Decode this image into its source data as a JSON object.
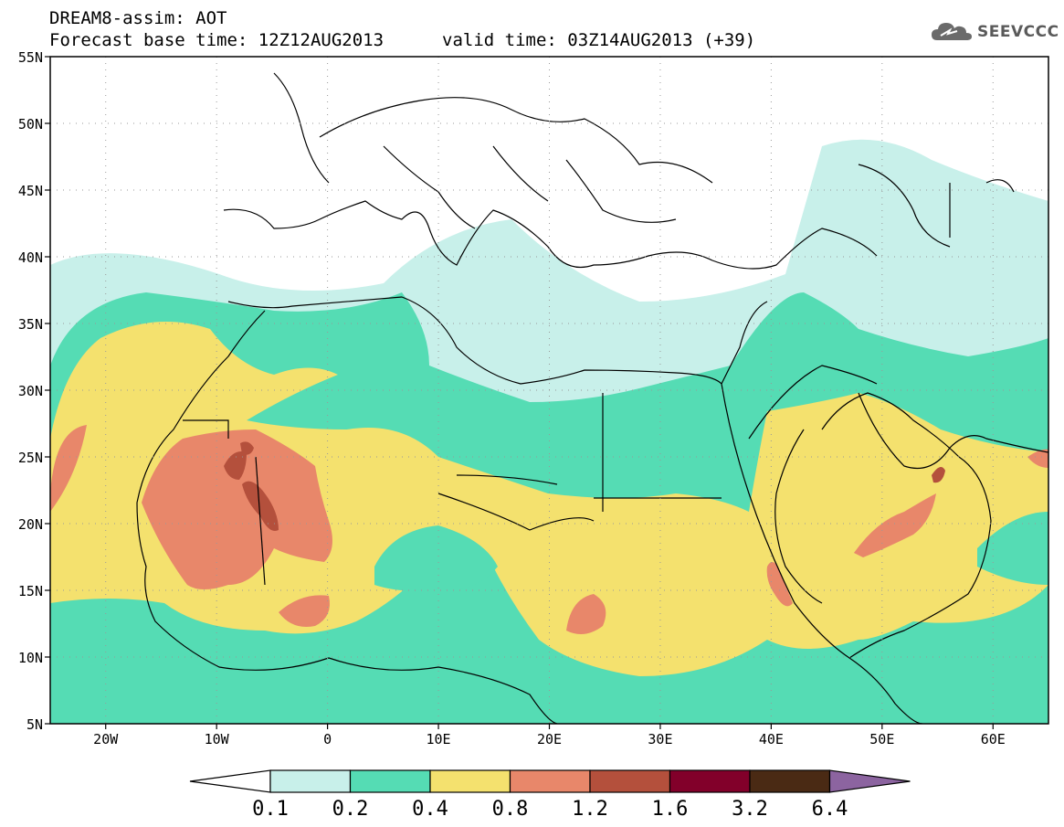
{
  "title": {
    "line1": "DREAM8-assim: AOT",
    "line2_left": "Forecast base time: 12Z12AUG2013",
    "line2_right": "valid time: 03Z14AUG2013 (+39)"
  },
  "logo": {
    "icon": "cloud-icon",
    "text": "SEEVCCC"
  },
  "map": {
    "lon_range": [
      -25,
      65
    ],
    "lat_range": [
      5,
      55
    ],
    "lat_ticks": [
      "5N",
      "10N",
      "15N",
      "20N",
      "25N",
      "30N",
      "35N",
      "40N",
      "45N",
      "50N",
      "55N"
    ],
    "lon_ticks": [
      "20W",
      "10W",
      "0",
      "10E",
      "20E",
      "30E",
      "40E",
      "50E",
      "60E"
    ],
    "gridlines": "dotted"
  },
  "colorbar": {
    "levels": [
      "0.1",
      "0.2",
      "0.4",
      "0.8",
      "1.2",
      "1.6",
      "3.2",
      "6.4"
    ],
    "colors": [
      "#c8f0ea",
      "#55dcb4",
      "#f4e16e",
      "#e8876a",
      "#b4503c",
      "#82002a",
      "#4a2a14",
      "#8c64a0"
    ],
    "under_color": "#ffffff"
  }
}
